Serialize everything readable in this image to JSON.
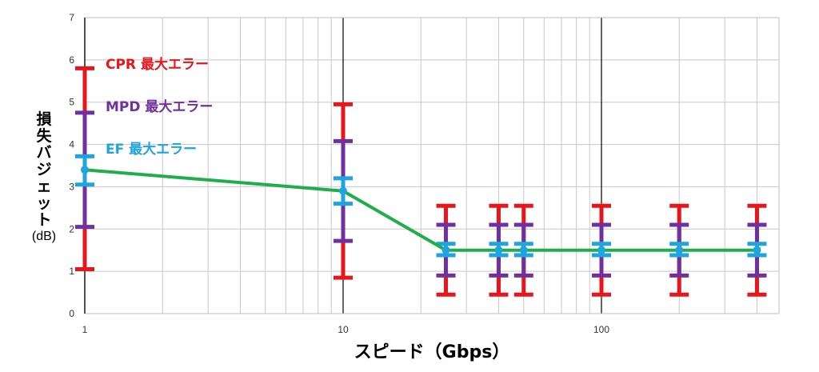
{
  "chart_data": {
    "type": "line",
    "x_scale": "log",
    "xlim": [
      1,
      450
    ],
    "ylim": [
      0,
      7
    ],
    "x_ticks": [
      "1",
      "10",
      "100"
    ],
    "y_ticks": [
      "0",
      "1",
      "2",
      "3",
      "4",
      "5",
      "6",
      "7"
    ],
    "grid": true,
    "xlabel": "スピード（Gbps）",
    "ylabel": "損失バジェット",
    "ylabel_unit": "(dB)",
    "x": [
      1,
      10,
      25,
      40,
      50,
      100,
      200,
      400
    ],
    "line_values": [
      3.4,
      2.9,
      1.5,
      1.5,
      1.5,
      1.5,
      1.5,
      1.5
    ],
    "line_color": "#1fae4a",
    "error_series": [
      {
        "name": "CPR 最大エラー",
        "color": "#e8151b",
        "low": [
          1.05,
          0.85,
          0.45,
          0.45,
          0.45,
          0.45,
          0.45,
          0.45
        ],
        "high": [
          5.8,
          4.95,
          2.55,
          2.55,
          2.55,
          2.55,
          2.55,
          2.55
        ]
      },
      {
        "name": "MPD 最大エラー",
        "color": "#7030a0",
        "low": [
          2.05,
          1.72,
          0.9,
          0.9,
          0.9,
          0.9,
          0.9,
          0.9
        ],
        "high": [
          4.75,
          4.08,
          2.1,
          2.1,
          2.1,
          2.1,
          2.1,
          2.1
        ]
      },
      {
        "name": "EF 最大エラー",
        "color": "#1fa5dd",
        "low": [
          3.05,
          2.6,
          1.38,
          1.38,
          1.38,
          1.38,
          1.38,
          1.38
        ],
        "high": [
          3.72,
          3.2,
          1.65,
          1.65,
          1.65,
          1.65,
          1.65,
          1.65
        ]
      }
    ],
    "legend_position": "top-left (inside plot)"
  }
}
